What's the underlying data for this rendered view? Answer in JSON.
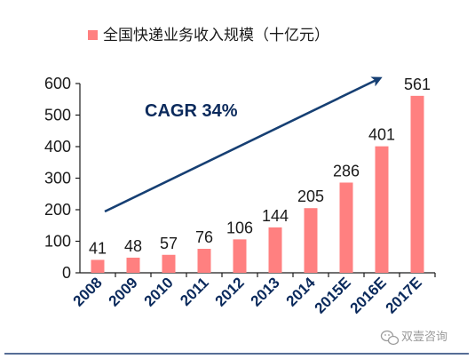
{
  "chart_data": {
    "type": "bar",
    "title": "",
    "xlabel": "",
    "ylabel": "",
    "categories": [
      "2008",
      "2009",
      "2010",
      "2011",
      "2012",
      "2013",
      "2014",
      "2015E",
      "2016E",
      "2017E"
    ],
    "series": [
      {
        "name": "全国快递业务收入规模（十亿元）",
        "values": [
          41,
          48,
          57,
          76,
          106,
          144,
          205,
          286,
          401,
          561
        ]
      }
    ],
    "ylim": [
      0,
      600
    ],
    "yticks": [
      0,
      100,
      200,
      300,
      400,
      500,
      600
    ],
    "grid": false,
    "legend_position": "top",
    "annotation": "CAGR 34%",
    "colors": {
      "bar": "#ff8080",
      "axis": "#1a1a1a",
      "arrow": "#163f73",
      "rule": "#1f3f73"
    }
  },
  "watermark": {
    "text": "双壹咨询",
    "icon": "wechat-icon"
  }
}
